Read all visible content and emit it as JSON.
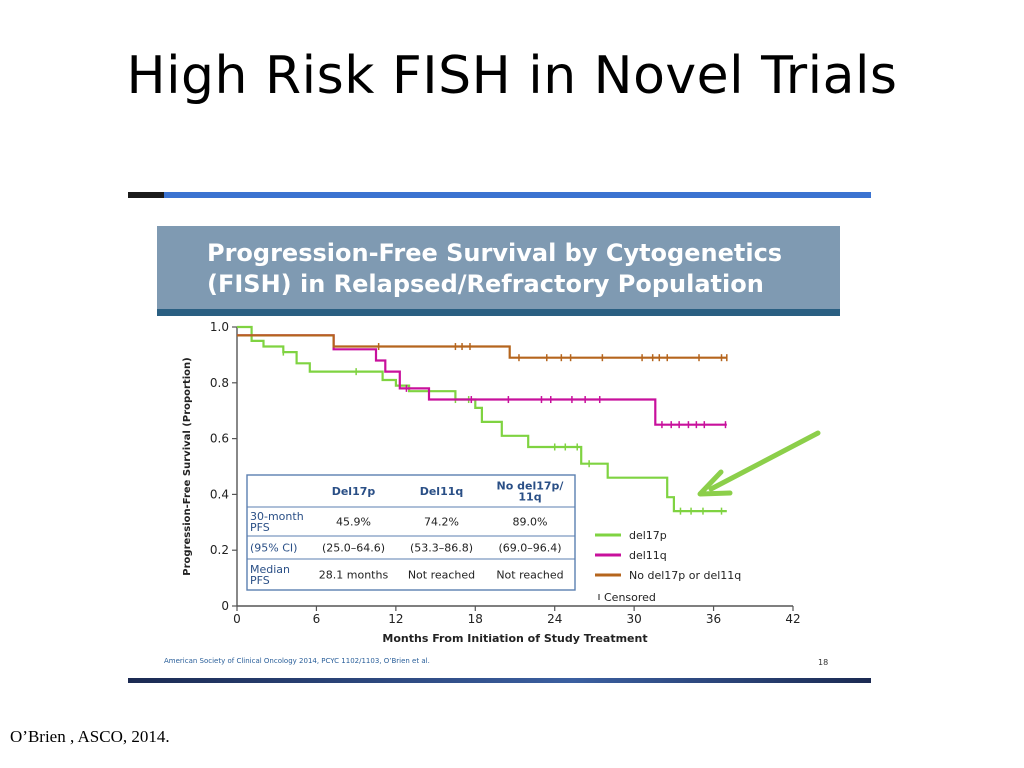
{
  "slide": {
    "title": "High Risk FISH in Novel Trials",
    "citation": "O’Brien , ASCO, 2014."
  },
  "figure": {
    "header_line_1": "Progression-Free Survival by Cytogenetics",
    "header_line_2": "(FISH) in Relapsed/Refractory Population",
    "source_note": "American Society of Clinical Oncology 2014, PCYC 1102/1103, O’Brien et al.",
    "page_number": "18"
  },
  "table": {
    "headers": [
      "",
      "Del17p",
      "Del11q",
      "No del17p/\n11q"
    ],
    "rows": [
      [
        "30-month\nPFS",
        "45.9%",
        "74.2%",
        "89.0%"
      ],
      [
        "(95% CI)",
        "(25.0–64.6)",
        "(53.3–86.8)",
        "(69.0–96.4)"
      ],
      [
        "Median\nPFS",
        "28.1 months",
        "Not reached",
        "Not reached"
      ]
    ]
  },
  "colors": {
    "arrow": "#8ccf4a",
    "table_border": "#5b7fb0",
    "table_header": "#2a4f86"
  },
  "chart_data": {
    "type": "line",
    "title": "",
    "xlabel": "Months From Initiation of Study Treatment",
    "ylabel": "Progression-Free Survival (Proportion)",
    "xlim": [
      0,
      42
    ],
    "ylim": [
      0,
      1.0
    ],
    "xticks": [
      0,
      6,
      12,
      18,
      24,
      30,
      36,
      42
    ],
    "yticks": [
      0,
      0.2,
      0.4,
      0.6,
      0.8,
      1.0
    ],
    "ytick_labels": [
      "0",
      "0.2",
      "0.4",
      "0.6",
      "0.8",
      "1.0"
    ],
    "grid": false,
    "legend_position": "bottom-right",
    "censored_label": "Censored",
    "series": [
      {
        "name": "del17p",
        "color": "#7fd341",
        "steps": [
          [
            0,
            1.0
          ],
          [
            1.1,
            1.0
          ],
          [
            1.1,
            0.95
          ],
          [
            2,
            0.95
          ],
          [
            2,
            0.93
          ],
          [
            3.5,
            0.93
          ],
          [
            3.5,
            0.91
          ],
          [
            4.5,
            0.91
          ],
          [
            4.5,
            0.87
          ],
          [
            5.5,
            0.87
          ],
          [
            5.5,
            0.84
          ],
          [
            11,
            0.84
          ],
          [
            11,
            0.81
          ],
          [
            12,
            0.81
          ],
          [
            12,
            0.79
          ],
          [
            13,
            0.79
          ],
          [
            13,
            0.77
          ],
          [
            16.5,
            0.77
          ],
          [
            16.5,
            0.74
          ],
          [
            18,
            0.74
          ],
          [
            18,
            0.71
          ],
          [
            18.5,
            0.71
          ],
          [
            18.5,
            0.66
          ],
          [
            20,
            0.66
          ],
          [
            20,
            0.61
          ],
          [
            22,
            0.61
          ],
          [
            22,
            0.57
          ],
          [
            26,
            0.57
          ],
          [
            26,
            0.51
          ],
          [
            28,
            0.51
          ],
          [
            28,
            0.46
          ],
          [
            32.5,
            0.46
          ],
          [
            32.5,
            0.39
          ],
          [
            33,
            0.39
          ],
          [
            33,
            0.34
          ],
          [
            37,
            0.34
          ]
        ],
        "censored": [
          3.5,
          9,
          16.5,
          17.5,
          24,
          24.8,
          25.7,
          26.6,
          33.5,
          34.3,
          35.2,
          36.6
        ]
      },
      {
        "name": "del11q",
        "color": "#c8109c",
        "steps": [
          [
            0,
            0.97
          ],
          [
            7.3,
            0.97
          ],
          [
            7.3,
            0.92
          ],
          [
            10.5,
            0.92
          ],
          [
            10.5,
            0.88
          ],
          [
            11.2,
            0.88
          ],
          [
            11.2,
            0.84
          ],
          [
            12.3,
            0.84
          ],
          [
            12.3,
            0.78
          ],
          [
            14.5,
            0.78
          ],
          [
            14.5,
            0.74
          ],
          [
            31.6,
            0.74
          ],
          [
            31.6,
            0.65
          ],
          [
            37,
            0.65
          ]
        ],
        "censored": [
          12.8,
          17.7,
          20.5,
          23,
          23.7,
          25.3,
          26.3,
          27.4,
          32.1,
          32.8,
          33.4,
          34.1,
          34.7,
          35.3,
          36.9
        ]
      },
      {
        "name": "No del17p or del11q",
        "color": "#b5651d",
        "steps": [
          [
            0,
            0.97
          ],
          [
            7.3,
            0.97
          ],
          [
            7.3,
            0.93
          ],
          [
            20.6,
            0.93
          ],
          [
            20.6,
            0.89
          ],
          [
            37,
            0.89
          ]
        ],
        "censored": [
          10.7,
          16.5,
          17,
          17.6,
          21.3,
          23.4,
          24.5,
          25.2,
          27.6,
          30.6,
          31.4,
          31.9,
          32.5,
          34.9,
          36.6,
          37
        ]
      }
    ]
  }
}
